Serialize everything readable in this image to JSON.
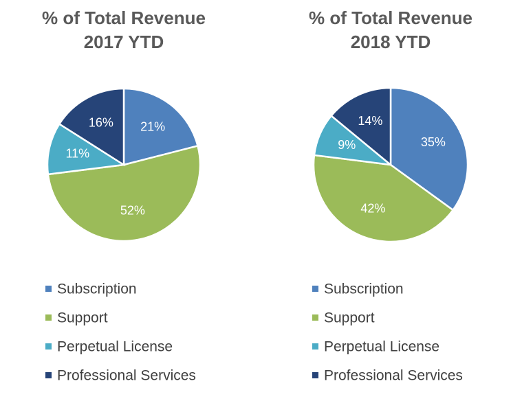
{
  "chart_data": [
    {
      "type": "pie",
      "title": [
        "% of Total Revenue",
        "2017 YTD"
      ],
      "categories": [
        "Subscription",
        "Support",
        "Perpetual License",
        "Professional Services"
      ],
      "values": [
        21,
        52,
        11,
        16
      ],
      "data_labels": [
        "21%",
        "52%",
        "11%",
        "16%"
      ],
      "legend": "bottom"
    },
    {
      "type": "pie",
      "title": [
        "% of Total Revenue",
        "2018 YTD"
      ],
      "categories": [
        "Subscription",
        "Support",
        "Perpetual License",
        "Professional Services"
      ],
      "values": [
        35,
        42,
        9,
        14
      ],
      "data_labels": [
        "35%",
        "42%",
        "9%",
        "14%"
      ],
      "legend": "bottom"
    }
  ],
  "colors": [
    "#4F81BD",
    "#9BBB59",
    "#4BACC6",
    "#264478"
  ]
}
